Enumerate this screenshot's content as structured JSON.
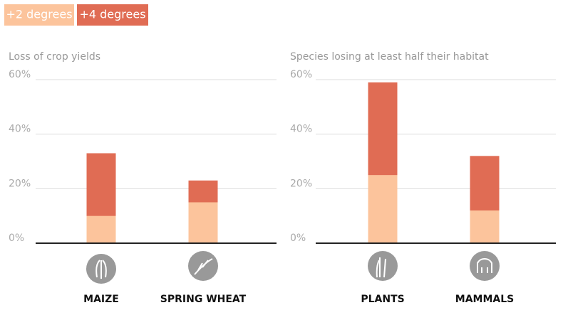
{
  "legend": [
    {
      "label": "+2 degrees",
      "color": "#fcc49c"
    },
    {
      "label": "+4 degrees",
      "color": "#e06c54"
    }
  ],
  "chart_data": [
    {
      "type": "bar",
      "title": "Loss of crop yields",
      "categories": [
        "MAIZE",
        "SPRING WHEAT"
      ],
      "series": [
        {
          "values": [
            10,
            15
          ]
        },
        {
          "values": [
            33,
            23
          ]
        }
      ],
      "ylim": [
        0,
        60
      ],
      "yticks": [
        {
          "value": 0,
          "label": "0%"
        },
        {
          "value": 20,
          "label": "20%"
        },
        {
          "value": 40,
          "label": "40%"
        },
        {
          "value": 60,
          "label": "60%"
        }
      ],
      "grid": true
    },
    {
      "type": "bar",
      "title": "Species losing at least half their habitat",
      "categories": [
        "PLANTS",
        "MAMMALS"
      ],
      "series": [
        {
          "values": [
            25,
            12
          ]
        },
        {
          "values": [
            59,
            32
          ]
        }
      ],
      "ylim": [
        0,
        60
      ],
      "yticks": [
        {
          "value": 0,
          "label": "0%"
        },
        {
          "value": 20,
          "label": "20%"
        },
        {
          "value": 40,
          "label": "40%"
        },
        {
          "value": 60,
          "label": "60%"
        }
      ],
      "grid": true
    }
  ]
}
